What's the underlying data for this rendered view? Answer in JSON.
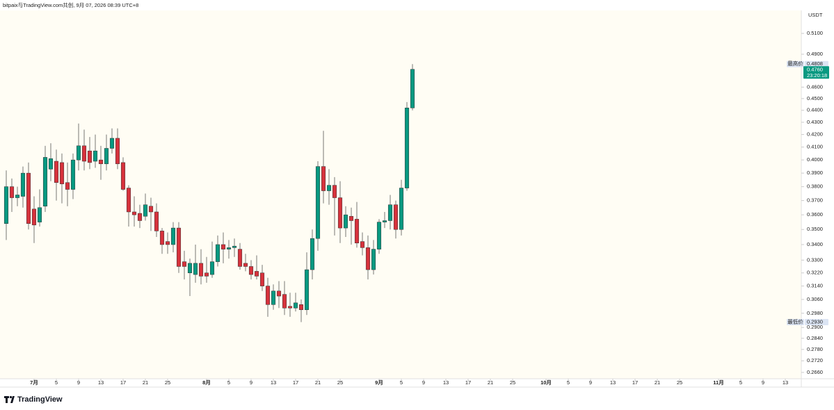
{
  "header": "bitpaix与TradingView.com共创, 9月 07, 2026 08:39 UTC+8",
  "brand": "TradingView",
  "chart_data": {
    "type": "candlestick",
    "currency": "USDT",
    "log_scale": true,
    "up_color": "#089981",
    "down_color": "#d7323c",
    "x": [
      "06-26",
      "06-27",
      "06-28",
      "06-29",
      "06-30",
      "07-01",
      "07-02",
      "07-03",
      "07-04",
      "07-05",
      "07-06",
      "07-07",
      "07-08",
      "07-09",
      "07-10",
      "07-11",
      "07-12",
      "07-13",
      "07-14",
      "07-15",
      "07-16",
      "07-17",
      "07-18",
      "07-19",
      "07-20",
      "07-21",
      "07-22",
      "07-23",
      "07-24",
      "07-25",
      "07-26",
      "07-27",
      "07-28",
      "07-29",
      "07-30",
      "07-31",
      "08-01",
      "08-02",
      "08-03",
      "08-04",
      "08-05",
      "08-06",
      "08-07",
      "08-08",
      "08-09",
      "08-10",
      "08-11",
      "08-12",
      "08-13",
      "08-14",
      "08-15",
      "08-16",
      "08-17",
      "08-18",
      "08-19",
      "08-20",
      "08-21",
      "08-22",
      "08-23",
      "08-24",
      "08-25",
      "08-26",
      "08-27",
      "08-28",
      "08-29",
      "08-30",
      "08-31",
      "09-01",
      "09-02",
      "09-03",
      "09-04",
      "09-05",
      "09-06",
      "09-07"
    ],
    "open": [
      0.354,
      0.38,
      0.372,
      0.373,
      0.39,
      0.364,
      0.355,
      0.366,
      0.393,
      0.399,
      0.398,
      0.383,
      0.378,
      0.4,
      0.411,
      0.407,
      0.399,
      0.4,
      0.397,
      0.409,
      0.417,
      0.398,
      0.379,
      0.362,
      0.361,
      0.359,
      0.366,
      0.362,
      0.349,
      0.342,
      0.34,
      0.351,
      0.329,
      0.322,
      0.321,
      0.328,
      0.322,
      0.321,
      0.329,
      0.34,
      0.337,
      0.338,
      0.337,
      0.328,
      0.326,
      0.323,
      0.322,
      0.314,
      0.303,
      0.311,
      0.309,
      0.302,
      0.301,
      0.303,
      0.3,
      0.324,
      0.344,
      0.395,
      0.377,
      0.381,
      0.372,
      0.351,
      0.359,
      0.357,
      0.342,
      0.338,
      0.324,
      0.337,
      0.355,
      0.356,
      0.367,
      0.35,
      0.379,
      0.442
    ],
    "high": [
      0.392,
      0.386,
      0.38,
      0.395,
      0.398,
      0.373,
      0.378,
      0.411,
      0.413,
      0.408,
      0.405,
      0.398,
      0.405,
      0.429,
      0.424,
      0.418,
      0.42,
      0.411,
      0.42,
      0.425,
      0.425,
      0.402,
      0.381,
      0.373,
      0.367,
      0.375,
      0.372,
      0.368,
      0.351,
      0.348,
      0.355,
      0.355,
      0.336,
      0.331,
      0.34,
      0.337,
      0.332,
      0.342,
      0.346,
      0.348,
      0.343,
      0.344,
      0.341,
      0.334,
      0.33,
      0.333,
      0.327,
      0.319,
      0.315,
      0.317,
      0.317,
      0.31,
      0.31,
      0.306,
      0.335,
      0.35,
      0.399,
      0.423,
      0.393,
      0.387,
      0.384,
      0.366,
      0.365,
      0.369,
      0.348,
      0.346,
      0.343,
      0.357,
      0.362,
      0.374,
      0.37,
      0.385,
      0.447,
      0.4808
    ],
    "low": [
      0.343,
      0.362,
      0.366,
      0.365,
      0.35,
      0.341,
      0.352,
      0.362,
      0.384,
      0.37,
      0.368,
      0.366,
      0.371,
      0.392,
      0.392,
      0.393,
      0.394,
      0.385,
      0.392,
      0.405,
      0.393,
      0.377,
      0.352,
      0.352,
      0.351,
      0.356,
      0.349,
      0.345,
      0.334,
      0.334,
      0.335,
      0.322,
      0.318,
      0.308,
      0.316,
      0.315,
      0.316,
      0.319,
      0.326,
      0.328,
      0.331,
      0.332,
      0.324,
      0.323,
      0.318,
      0.318,
      0.311,
      0.296,
      0.3,
      0.301,
      0.297,
      0.296,
      0.299,
      0.293,
      0.297,
      0.318,
      0.336,
      0.368,
      0.367,
      0.346,
      0.341,
      0.345,
      0.34,
      0.338,
      0.333,
      0.318,
      0.321,
      0.334,
      0.351,
      0.35,
      0.344,
      0.346,
      0.377,
      0.44
    ],
    "close": [
      0.38,
      0.372,
      0.374,
      0.39,
      0.354,
      0.353,
      0.365,
      0.402,
      0.401,
      0.383,
      0.382,
      0.378,
      0.4,
      0.411,
      0.399,
      0.398,
      0.407,
      0.397,
      0.409,
      0.417,
      0.397,
      0.378,
      0.362,
      0.36,
      0.356,
      0.367,
      0.362,
      0.349,
      0.34,
      0.34,
      0.351,
      0.326,
      0.326,
      0.328,
      0.328,
      0.32,
      0.32,
      0.329,
      0.34,
      0.337,
      0.338,
      0.339,
      0.326,
      0.326,
      0.321,
      0.32,
      0.314,
      0.303,
      0.311,
      0.308,
      0.301,
      0.301,
      0.304,
      0.3,
      0.324,
      0.344,
      0.395,
      0.377,
      0.381,
      0.372,
      0.351,
      0.36,
      0.356,
      0.341,
      0.338,
      0.324,
      0.337,
      0.355,
      0.356,
      0.367,
      0.35,
      0.379,
      0.442,
      0.476
    ],
    "xlim": [
      "06-25",
      "11-16"
    ],
    "xticks": [
      {
        "value": "07-01",
        "label": "7月"
      },
      {
        "value": "07-05",
        "label": "5"
      },
      {
        "value": "07-09",
        "label": "9"
      },
      {
        "value": "07-13",
        "label": "13"
      },
      {
        "value": "07-17",
        "label": "17"
      },
      {
        "value": "07-21",
        "label": "21"
      },
      {
        "value": "07-25",
        "label": "25"
      },
      {
        "value": "08-01",
        "label": "8月"
      },
      {
        "value": "08-05",
        "label": "5"
      },
      {
        "value": "08-09",
        "label": "9"
      },
      {
        "value": "08-13",
        "label": "13"
      },
      {
        "value": "08-17",
        "label": "17"
      },
      {
        "value": "08-21",
        "label": "21"
      },
      {
        "value": "08-25",
        "label": "25"
      },
      {
        "value": "09-01",
        "label": "9月"
      },
      {
        "value": "09-05",
        "label": "5"
      },
      {
        "value": "09-09",
        "label": "9"
      },
      {
        "value": "09-13",
        "label": "13"
      },
      {
        "value": "09-17",
        "label": "17"
      },
      {
        "value": "09-21",
        "label": "21"
      },
      {
        "value": "09-25",
        "label": "25"
      },
      {
        "value": "10-01",
        "label": "10月"
      },
      {
        "value": "10-05",
        "label": "5"
      },
      {
        "value": "10-09",
        "label": "9"
      },
      {
        "value": "10-13",
        "label": "13"
      },
      {
        "value": "10-17",
        "label": "17"
      },
      {
        "value": "10-21",
        "label": "21"
      },
      {
        "value": "10-25",
        "label": "25"
      },
      {
        "value": "11-01",
        "label": "11月"
      },
      {
        "value": "11-05",
        "label": "5"
      },
      {
        "value": "11-09",
        "label": "9"
      },
      {
        "value": "11-13",
        "label": "13"
      }
    ],
    "ylim": [
      0.2628,
      0.533
    ],
    "yticks": [
      {
        "value": 0.51,
        "label": "0.5100"
      },
      {
        "value": 0.49,
        "label": "0.4900"
      },
      {
        "value": 0.46,
        "label": "0.4600"
      },
      {
        "value": 0.45,
        "label": "0.4500"
      },
      {
        "value": 0.44,
        "label": "0.4400"
      },
      {
        "value": 0.43,
        "label": "0.4300"
      },
      {
        "value": 0.42,
        "label": "0.4200"
      },
      {
        "value": 0.41,
        "label": "0.4100"
      },
      {
        "value": 0.4,
        "label": "0.4000"
      },
      {
        "value": 0.39,
        "label": "0.3900"
      },
      {
        "value": 0.38,
        "label": "0.3800"
      },
      {
        "value": 0.37,
        "label": "0.3700"
      },
      {
        "value": 0.36,
        "label": "0.3600"
      },
      {
        "value": 0.35,
        "label": "0.3500"
      },
      {
        "value": 0.34,
        "label": "0.3400"
      },
      {
        "value": 0.33,
        "label": "0.3300"
      },
      {
        "value": 0.322,
        "label": "0.3220"
      },
      {
        "value": 0.314,
        "label": "0.3140"
      },
      {
        "value": 0.306,
        "label": "0.3060"
      },
      {
        "value": 0.298,
        "label": "0.2980"
      },
      {
        "value": 0.29,
        "label": "0.2900"
      },
      {
        "value": 0.284,
        "label": "0.2840"
      },
      {
        "value": 0.278,
        "label": "0.2780"
      },
      {
        "value": 0.272,
        "label": "0.2720"
      },
      {
        "value": 0.266,
        "label": "0.2660"
      }
    ],
    "high_marker": {
      "name": "最高价",
      "value": 0.4808
    },
    "low_marker": {
      "name": "最低价",
      "value": 0.293,
      "label": "0.2930"
    },
    "last_price": {
      "value": 0.476,
      "label": "0.4760",
      "countdown": "23:20:18"
    }
  }
}
